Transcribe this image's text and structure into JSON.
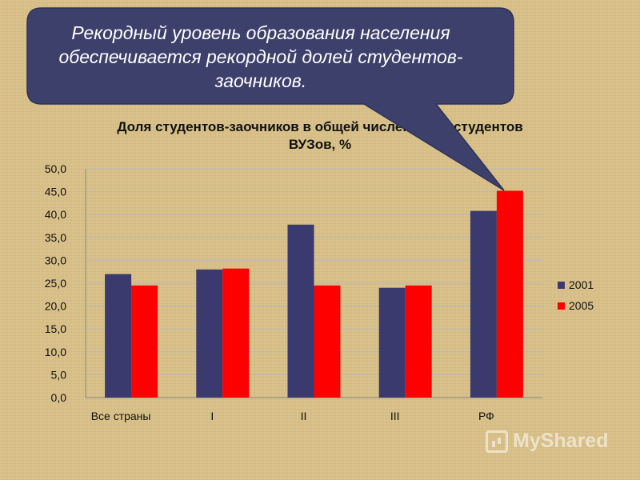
{
  "slide": {
    "title_fragment": "и по",
    "callout_text": "Рекордный уровень образования населения обеспечивается  рекордной долей студентов-заочников.",
    "watermark": "MyShared"
  },
  "colors": {
    "series_2001": "#3b3a6e",
    "series_2005": "#ff0000",
    "callout_fill": "#3d406b",
    "background": "#d7bf87"
  },
  "chart_data": {
    "type": "bar",
    "title": "Доля студентов-заочников в общей численности студентов ВУЗов, %",
    "categories": [
      "Все страны",
      "I",
      "II",
      "III",
      "РФ"
    ],
    "series": [
      {
        "name": "2001",
        "values": [
          27.0,
          28.0,
          37.8,
          24.0,
          40.8
        ]
      },
      {
        "name": "2005",
        "values": [
          24.5,
          28.2,
          24.5,
          24.5,
          45.2
        ]
      }
    ],
    "ylim": [
      0,
      50
    ],
    "y_ticks": [
      "0,0",
      "5,0",
      "10,0",
      "15,0",
      "20,0",
      "25,0",
      "30,0",
      "35,0",
      "40,0",
      "45,0",
      "50,0"
    ],
    "xlabel": "",
    "ylabel": "",
    "grid": true,
    "legend_position": "right"
  }
}
